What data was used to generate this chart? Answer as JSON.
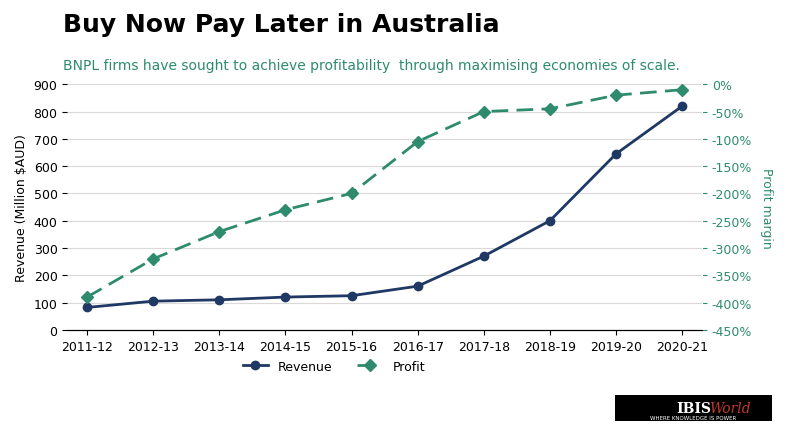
{
  "title": "Buy Now Pay Later in Australia",
  "subtitle": "BNPL firms have sought to achieve profitability  through maximising economies of scale.",
  "categories": [
    "2011-12",
    "2012-13",
    "2013-14",
    "2014-15",
    "2015-16",
    "2016-17",
    "2017-18",
    "2018-19",
    "2019-20",
    "2020-21"
  ],
  "revenue": [
    82,
    105,
    110,
    120,
    125,
    160,
    270,
    400,
    645,
    820
  ],
  "profit_margin": [
    -390,
    -320,
    -270,
    -230,
    -200,
    -105,
    -50,
    -45,
    -20,
    -10
  ],
  "revenue_color": "#1f3864",
  "profit_color": "#2e8b6e",
  "left_ylabel": "Revenue (Million $AUD)",
  "right_ylabel": "Profit margin",
  "left_ylim": [
    0,
    900
  ],
  "right_ylim": [
    -450,
    0
  ],
  "left_yticks": [
    0,
    100,
    200,
    300,
    400,
    500,
    600,
    700,
    800,
    900
  ],
  "right_yticks": [
    0,
    -50,
    -100,
    -150,
    -200,
    -250,
    -300,
    -350,
    -400,
    -450
  ],
  "right_yticklabels": [
    "0%",
    "-50%",
    "-100%",
    "-150%",
    "-200%",
    "-250%",
    "-300%",
    "-350%",
    "-400%",
    "-450%"
  ],
  "title_fontsize": 18,
  "subtitle_fontsize": 10,
  "axis_fontsize": 9,
  "legend_labels": [
    "Revenue",
    "Profit"
  ],
  "background_color": "#ffffff",
  "grid_color": "#d9d9d9",
  "subtitle_color": "#2e8b6e",
  "right_label_color": "#2e8b6e",
  "ibisworld_text": "IBISWorld",
  "ibisworld_subtext": "WHERE KNOWLEDGE IS POWER"
}
